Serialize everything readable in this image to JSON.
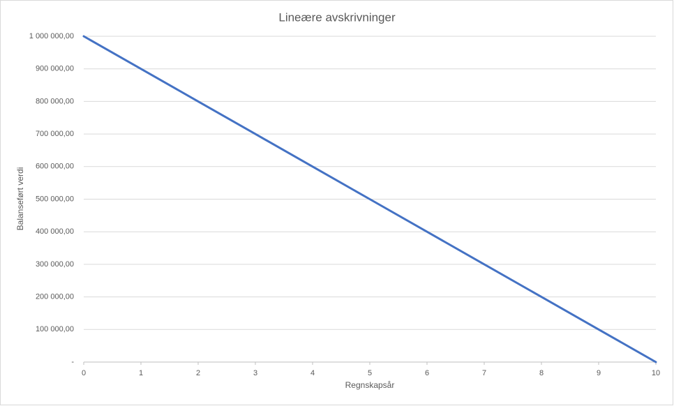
{
  "chart_data": {
    "type": "line",
    "title": "Lineære avskrivninger",
    "x_label": "Regnskapsår",
    "y_label": "Balanseført verdi",
    "x": [
      0,
      1,
      2,
      3,
      4,
      5,
      6,
      7,
      8,
      9,
      10
    ],
    "values": [
      1000000,
      900000,
      800000,
      700000,
      600000,
      500000,
      400000,
      300000,
      200000,
      100000,
      0
    ],
    "color": "#4472c4",
    "xlim": [
      0,
      10
    ],
    "xticks": [
      0,
      1,
      2,
      3,
      4,
      5,
      6,
      7,
      8,
      9,
      10
    ],
    "ylim": [
      0,
      1000000
    ],
    "yticks": [
      {
        "value": 0,
        "label": "-"
      },
      {
        "value": 100000,
        "label": "100 000,00"
      },
      {
        "value": 200000,
        "label": "200 000,00"
      },
      {
        "value": 300000,
        "label": "300 000,00"
      },
      {
        "value": 400000,
        "label": "400 000,00"
      },
      {
        "value": 500000,
        "label": "500 000,00"
      },
      {
        "value": 600000,
        "label": "600 000,00"
      },
      {
        "value": 700000,
        "label": "700 000,00"
      },
      {
        "value": 800000,
        "label": "800 000,00"
      },
      {
        "value": 900000,
        "label": "900 000,00"
      },
      {
        "value": 1000000,
        "label": "1 000 000,00"
      }
    ],
    "grid": true
  }
}
